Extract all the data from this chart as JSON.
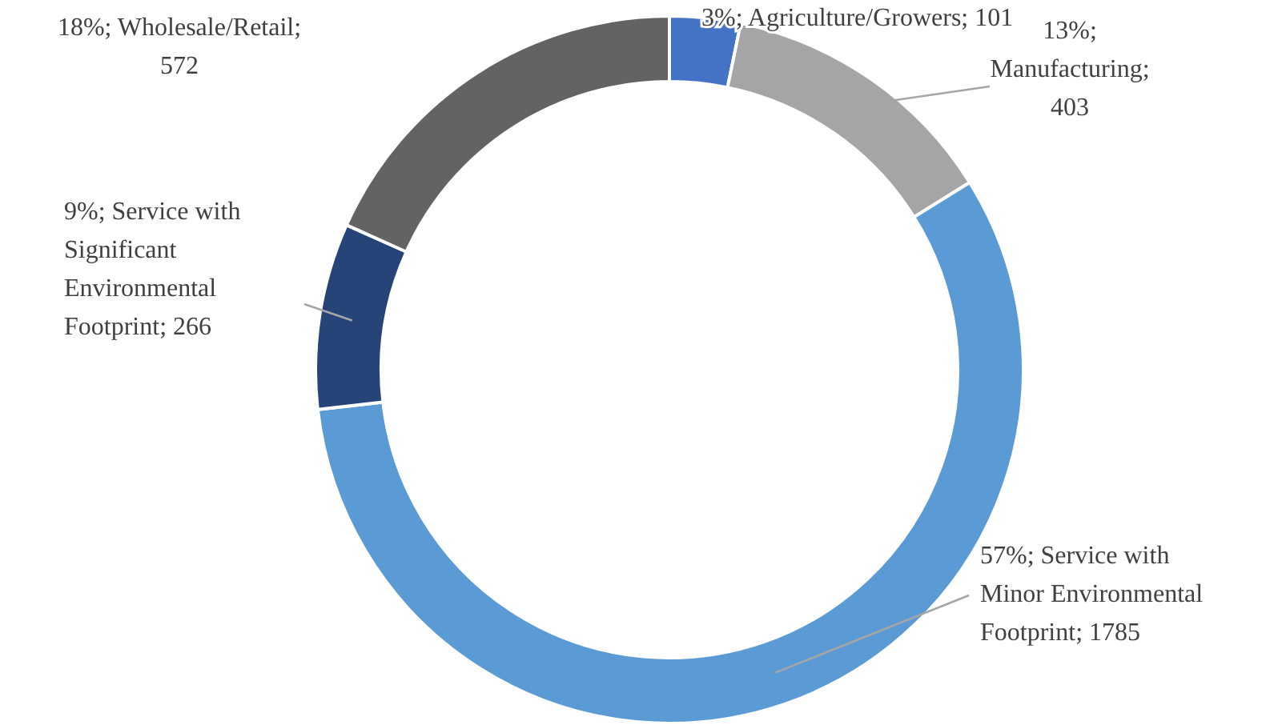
{
  "chart_data": {
    "type": "donut",
    "categories": [
      "3%; Agriculture/Growers;  101",
      "13%; Manufacturing; 403",
      "57%; Service with Minor Environmental Footprint; 1785",
      "9%; Service with Significant Environmental Footprint; 266",
      "18%; Wholesale/Retail; 572"
    ],
    "values": [
      101,
      403,
      1785,
      266,
      572
    ],
    "colors": [
      "#4472c4",
      "#a5a5a5",
      "#5b9bd5",
      "#264478",
      "#636363"
    ],
    "legend": false
  }
}
